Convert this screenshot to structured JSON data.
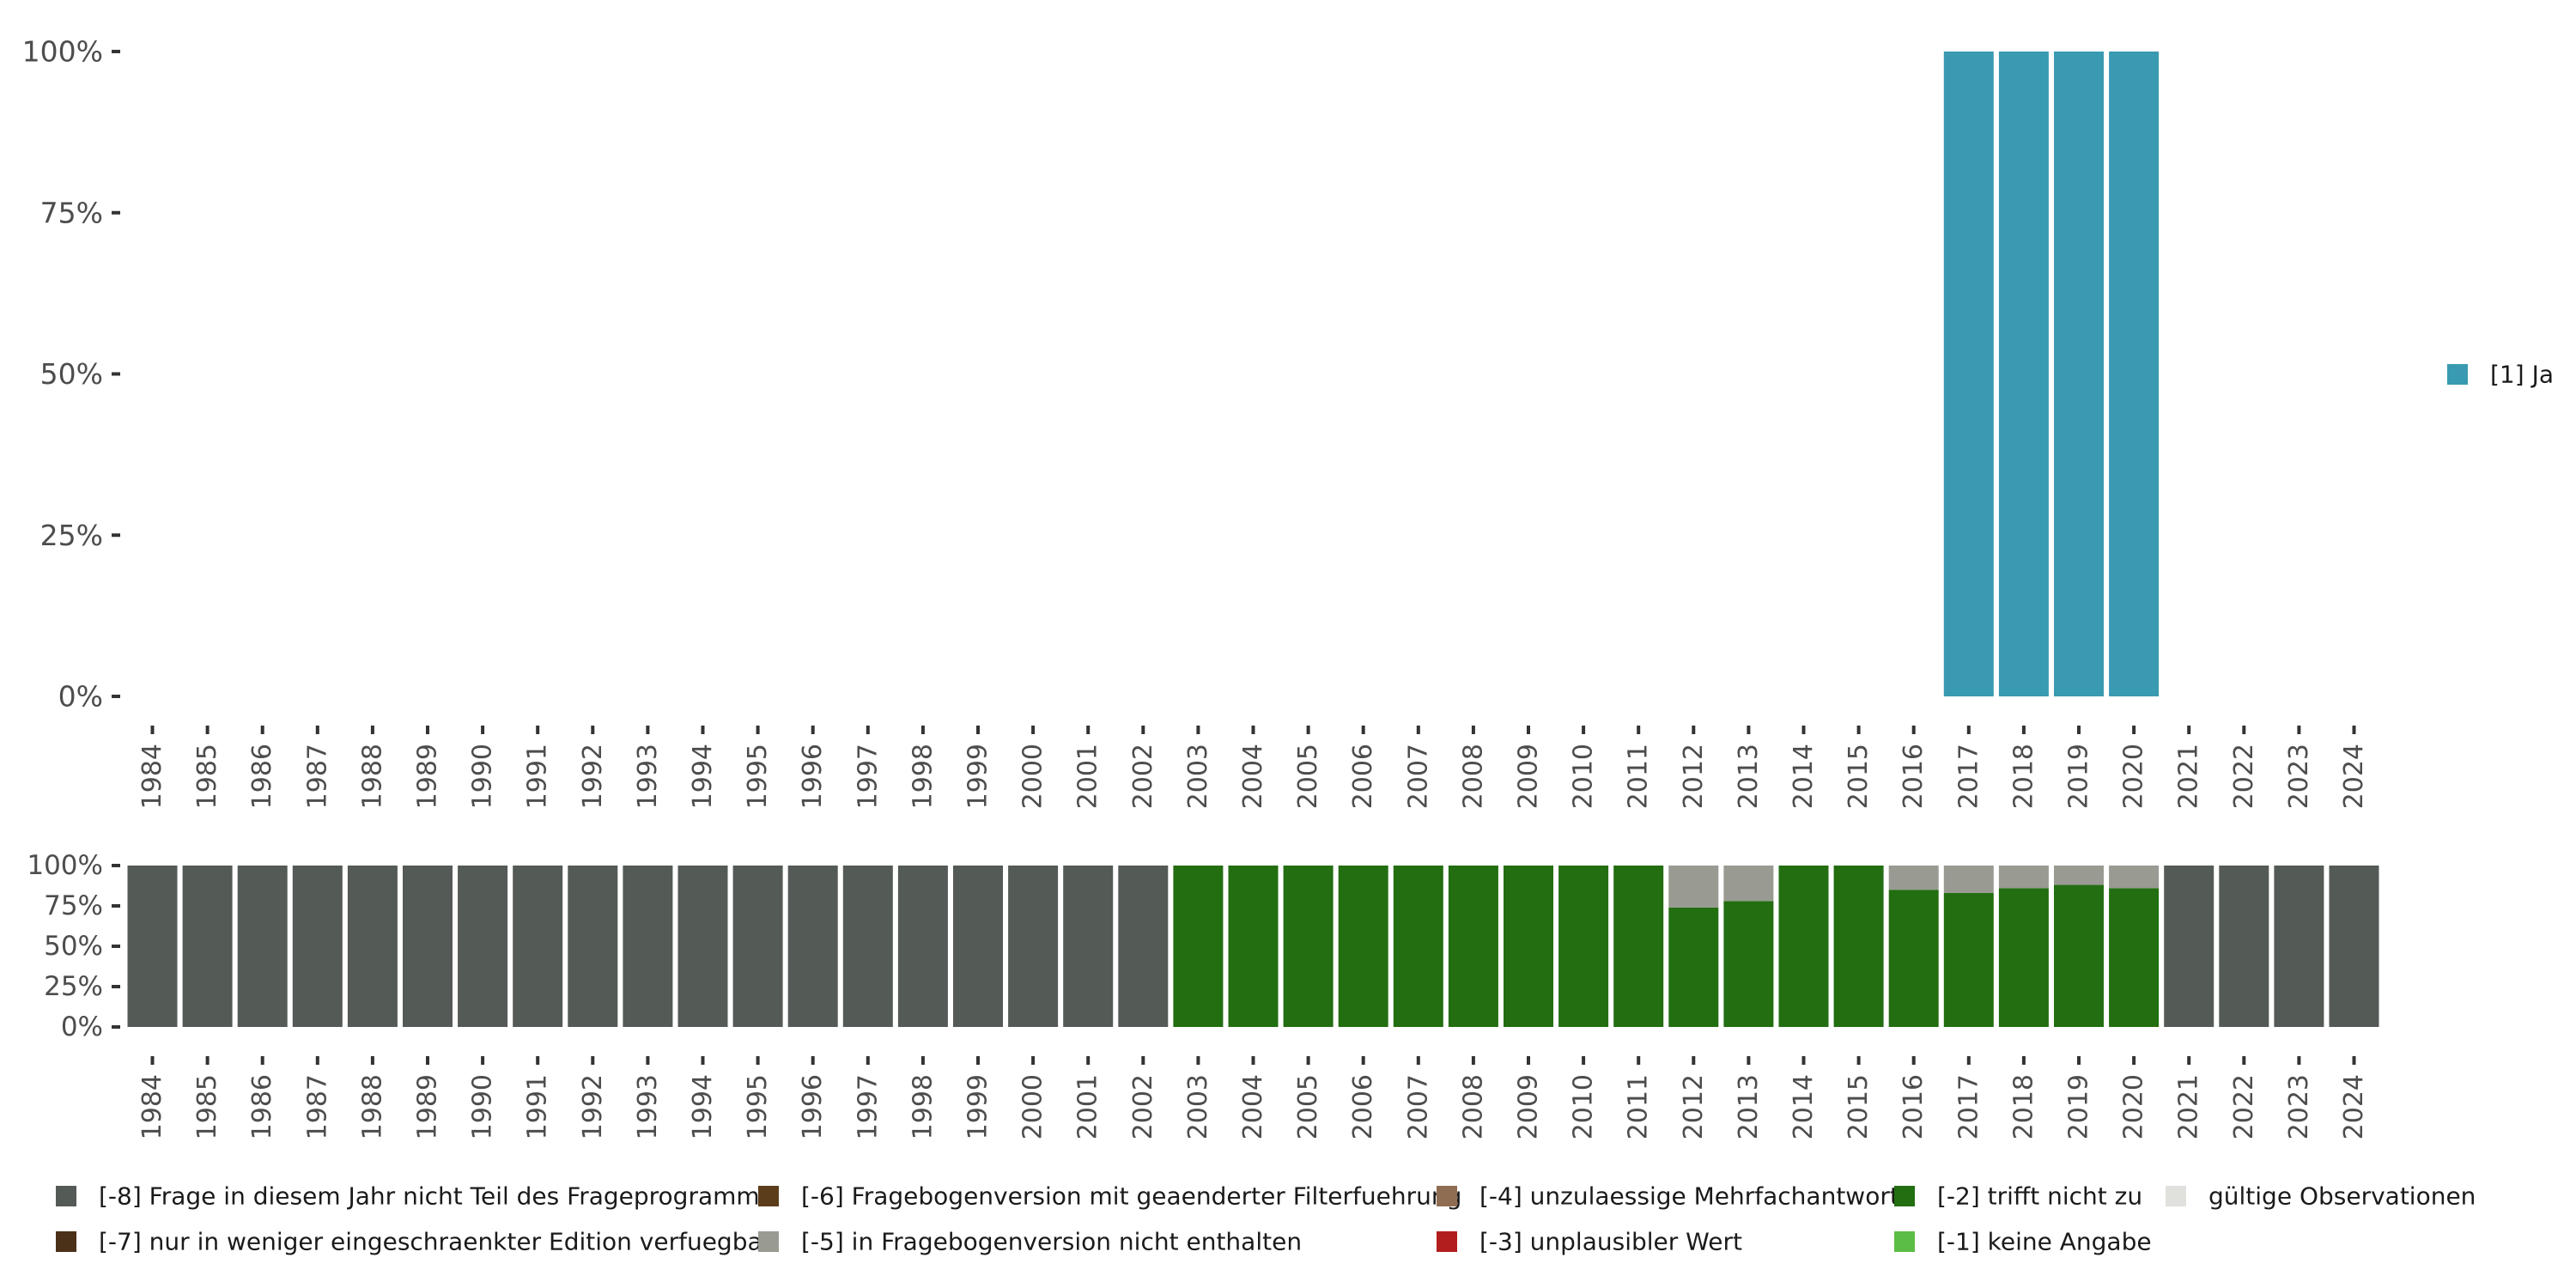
{
  "chart_data": [
    {
      "type": "bar",
      "title": "",
      "xlabel": "",
      "ylabel": "",
      "ylim": [
        0,
        100
      ],
      "yticks": [
        "0%",
        "25%",
        "50%",
        "75%",
        "100%"
      ],
      "categories": [
        "1984",
        "1985",
        "1986",
        "1987",
        "1988",
        "1989",
        "1990",
        "1991",
        "1992",
        "1993",
        "1994",
        "1995",
        "1996",
        "1997",
        "1998",
        "1999",
        "2000",
        "2001",
        "2002",
        "2003",
        "2004",
        "2005",
        "2006",
        "2007",
        "2008",
        "2009",
        "2010",
        "2011",
        "2012",
        "2013",
        "2014",
        "2015",
        "2016",
        "2017",
        "2018",
        "2019",
        "2020",
        "2021",
        "2022",
        "2023",
        "2024"
      ],
      "series": [
        {
          "name": "[1] Ja",
          "color": "#3a9ab2",
          "values": [
            0,
            0,
            0,
            0,
            0,
            0,
            0,
            0,
            0,
            0,
            0,
            0,
            0,
            0,
            0,
            0,
            0,
            0,
            0,
            0,
            0,
            0,
            0,
            0,
            0,
            0,
            0,
            0,
            0,
            0,
            0,
            0,
            0,
            100,
            100,
            100,
            100,
            0,
            0,
            0,
            0
          ]
        }
      ],
      "legend": {
        "position": "right",
        "items": [
          {
            "label": "[1] Ja",
            "color": "#3a9ab2"
          }
        ]
      }
    },
    {
      "type": "bar",
      "stacked": true,
      "title": "",
      "xlabel": "",
      "ylabel": "",
      "ylim": [
        0,
        100
      ],
      "yticks": [
        "0%",
        "25%",
        "50%",
        "75%",
        "100%"
      ],
      "categories": [
        "1984",
        "1985",
        "1986",
        "1987",
        "1988",
        "1989",
        "1990",
        "1991",
        "1992",
        "1993",
        "1994",
        "1995",
        "1996",
        "1997",
        "1998",
        "1999",
        "2000",
        "2001",
        "2002",
        "2003",
        "2004",
        "2005",
        "2006",
        "2007",
        "2008",
        "2009",
        "2010",
        "2011",
        "2012",
        "2013",
        "2014",
        "2015",
        "2016",
        "2017",
        "2018",
        "2019",
        "2020",
        "2021",
        "2022",
        "2023",
        "2024"
      ],
      "series": [
        {
          "name": "[-2] trifft nicht zu",
          "color": "#226e11",
          "values": [
            0,
            0,
            0,
            0,
            0,
            0,
            0,
            0,
            0,
            0,
            0,
            0,
            0,
            0,
            0,
            0,
            0,
            0,
            0,
            100,
            100,
            100,
            100,
            100,
            100,
            100,
            100,
            100,
            74,
            78,
            100,
            100,
            85,
            83,
            86,
            88,
            86,
            0,
            0,
            0,
            0
          ]
        },
        {
          "name": "[-5] in Fragebogenversion nicht enthalten",
          "color": "#999a92",
          "values": [
            0,
            0,
            0,
            0,
            0,
            0,
            0,
            0,
            0,
            0,
            0,
            0,
            0,
            0,
            0,
            0,
            0,
            0,
            0,
            0,
            0,
            0,
            0,
            0,
            0,
            0,
            0,
            0,
            26,
            22,
            0,
            0,
            15,
            17,
            14,
            12,
            14,
            0,
            0,
            0,
            0
          ]
        },
        {
          "name": "[-8] Frage in diesem Jahr nicht Teil des Frageprogramms",
          "color": "#545a55",
          "values": [
            100,
            100,
            100,
            100,
            100,
            100,
            100,
            100,
            100,
            100,
            100,
            100,
            100,
            100,
            100,
            100,
            100,
            100,
            100,
            0,
            0,
            0,
            0,
            0,
            0,
            0,
            0,
            0,
            0,
            0,
            0,
            0,
            0,
            0,
            0,
            0,
            0,
            100,
            100,
            100,
            100
          ]
        }
      ],
      "legend": {
        "position": "bottom",
        "items": [
          {
            "label": "[-8] Frage in diesem Jahr nicht Teil des Frageprogramms",
            "color": "#545a55"
          },
          {
            "label": "[-7] nur in weniger eingeschraenkter Edition verfuegbar",
            "color": "#4b3118"
          },
          {
            "label": "[-6] Fragebogenversion mit geaenderter Filterfuehrung",
            "color": "#5b3d1b"
          },
          {
            "label": "[-5] in Fragebogenversion nicht enthalten",
            "color": "#999a92"
          },
          {
            "label": "[-4] unzulaessige Mehrfachantwort",
            "color": "#8f6d53"
          },
          {
            "label": "[-3] unplausibler Wert",
            "color": "#b21e1e"
          },
          {
            "label": "[-2] trifft nicht zu",
            "color": "#226e11"
          },
          {
            "label": "[-1] keine Angabe",
            "color": "#5bbd45"
          },
          {
            "label": "gültige Observationen",
            "color": "#e0e0dc"
          }
        ]
      }
    }
  ]
}
